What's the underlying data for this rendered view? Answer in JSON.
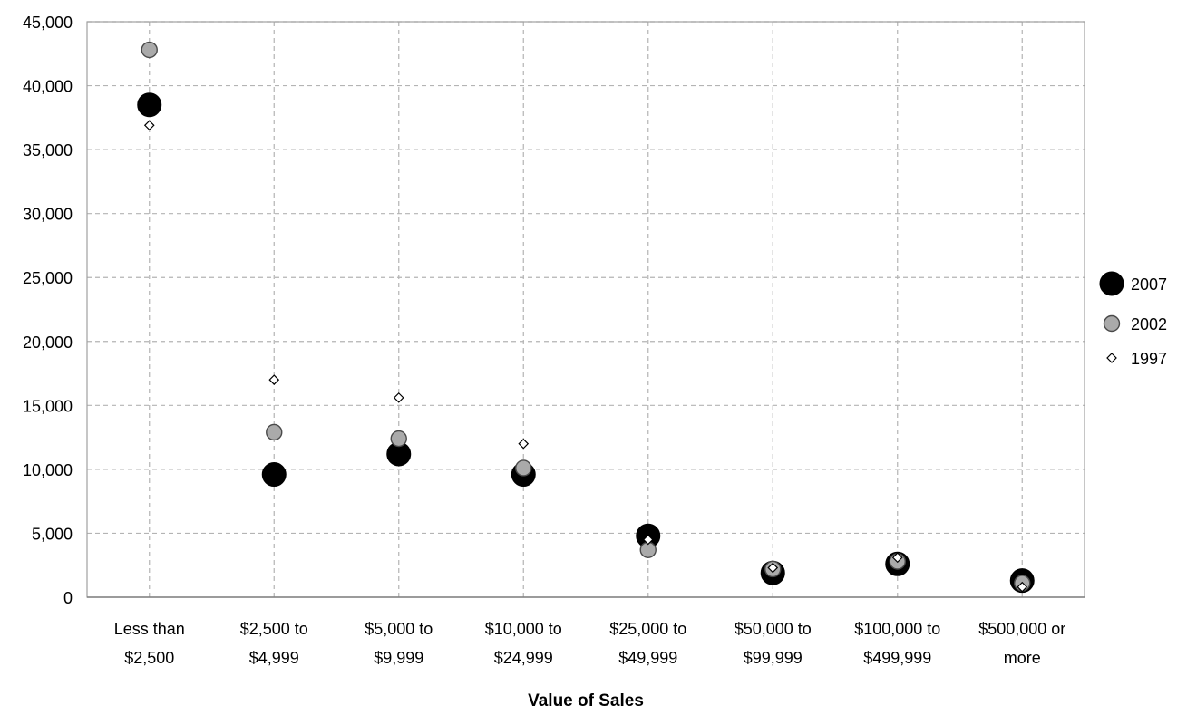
{
  "chart_data": {
    "type": "scatter",
    "title": "",
    "xlabel": "Value of Sales",
    "ylabel": "",
    "categories": [
      [
        "Less than",
        "$2,500"
      ],
      [
        "$2,500 to",
        "$4,999"
      ],
      [
        "$5,000 to",
        "$9,999"
      ],
      [
        "$10,000 to",
        "$24,999"
      ],
      [
        "$25,000 to",
        "$49,999"
      ],
      [
        "$50,000 to",
        "$99,999"
      ],
      [
        "$100,000 to",
        "$499,999"
      ],
      [
        "$500,000 or",
        "more"
      ]
    ],
    "ylim": [
      0,
      45000
    ],
    "yticks": [
      0,
      5000,
      10000,
      15000,
      20000,
      25000,
      30000,
      35000,
      40000,
      45000
    ],
    "ytick_labels": [
      "0",
      "5,000",
      "10,000",
      "15,000",
      "20,000",
      "25,000",
      "30,000",
      "35,000",
      "40,000",
      "45,000"
    ],
    "grid": true,
    "legend_position": "right",
    "series": [
      {
        "name": "2007",
        "marker": "large-circle",
        "color": "#000000",
        "values": [
          38500,
          9600,
          11200,
          9600,
          4800,
          1900,
          2600,
          1300
        ]
      },
      {
        "name": "2002",
        "marker": "circle",
        "color": "#aaaaaa",
        "values": [
          42800,
          12900,
          12400,
          10100,
          3700,
          2200,
          2800,
          1100
        ]
      },
      {
        "name": "1997",
        "marker": "diamond",
        "color": "#ffffff",
        "values": [
          36900,
          17000,
          15600,
          12000,
          4500,
          2300,
          3100,
          800
        ]
      }
    ]
  }
}
